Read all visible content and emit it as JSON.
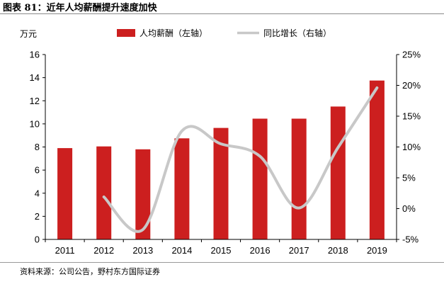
{
  "figure": {
    "title": "图表 81：近年人均薪酬提升速度加快",
    "source": "资料来源：公司公告，野村东方国际证券"
  },
  "colors": {
    "bar": "#cc1f1f",
    "line": "#c8c8c8",
    "axis": "#000000"
  },
  "chart_data": {
    "type": "bar",
    "categories": [
      "2011",
      "2012",
      "2013",
      "2014",
      "2015",
      "2016",
      "2017",
      "2018",
      "2019"
    ],
    "left_unit": "万元",
    "series": [
      {
        "name": "人均薪酬（左轴）",
        "type": "bar",
        "axis": "left",
        "values": [
          7.9,
          8.05,
          7.8,
          8.75,
          9.65,
          10.45,
          10.45,
          11.5,
          13.75
        ]
      },
      {
        "name": "同比增长（右轴）",
        "type": "line",
        "axis": "right",
        "values": [
          null,
          1.9,
          -3.4,
          12.6,
          10.5,
          8.5,
          0.1,
          9.9,
          19.6
        ]
      }
    ],
    "ylim_left": [
      0,
      16
    ],
    "yticks_left": [
      "0",
      "2",
      "4",
      "6",
      "8",
      "10",
      "12",
      "14",
      "16"
    ],
    "ylim_right": [
      -5,
      25
    ],
    "yticks_right": [
      "-5%",
      "0%",
      "5%",
      "10%",
      "15%",
      "20%",
      "25%"
    ],
    "grid": false,
    "legend_position": "top-center"
  }
}
